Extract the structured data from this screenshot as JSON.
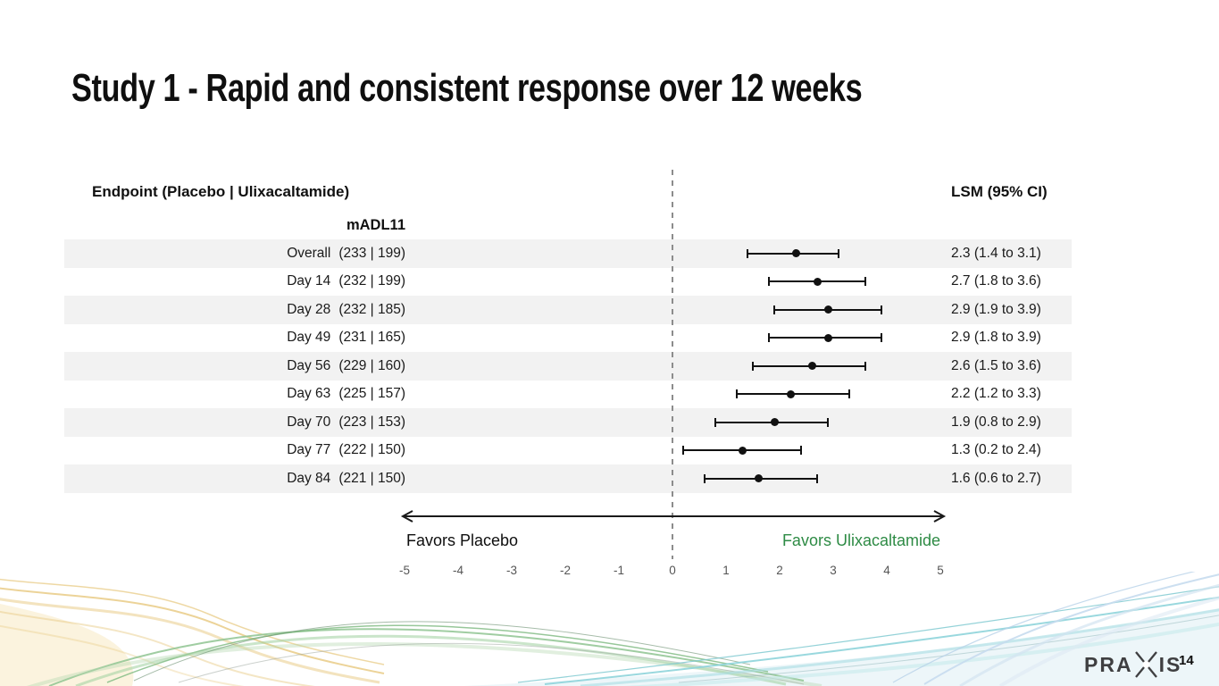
{
  "slide": {
    "page_number": "14",
    "logo_left": "PRA",
    "logo_right": "IS"
  },
  "table": {
    "endpoint_header": "Endpoint (Placebo | Ulixacaltamide)",
    "lsm_header": "LSM (95% CI)"
  },
  "colors": {
    "favors_green": "#2e8b45",
    "stripe": "#f2f2f2",
    "axis_tick_gray": "#555555",
    "reference_line_gray": "#8c8c8c",
    "marker_black": "#111111",
    "logo_gray": "#3f3f41"
  },
  "chart_data": {
    "type": "scatter",
    "variant": "forest-plot",
    "title": "Study 1 - Rapid and consistent response over 12 weeks",
    "endpoint_group": "mADL11",
    "xlim": [
      -5,
      5
    ],
    "x_ticks": [
      -5,
      -4,
      -3,
      -2,
      -1,
      0,
      1,
      2,
      3,
      4,
      5
    ],
    "zero_reference_line": 0,
    "favors_left": "Favors Placebo",
    "favors_right": "Favors Ulixacaltamide",
    "legend_position": "none",
    "grid": false,
    "rows": [
      {
        "label": "Overall",
        "counts": "(233 | 199)",
        "lsm": 2.3,
        "ci_low": 1.4,
        "ci_high": 3.1,
        "lsm_text": "2.3 (1.4 to 3.1)"
      },
      {
        "label": "Day 14",
        "counts": "(232 | 199)",
        "lsm": 2.7,
        "ci_low": 1.8,
        "ci_high": 3.6,
        "lsm_text": "2.7 (1.8 to 3.6)"
      },
      {
        "label": "Day 28",
        "counts": "(232 | 185)",
        "lsm": 2.9,
        "ci_low": 1.9,
        "ci_high": 3.9,
        "lsm_text": "2.9 (1.9 to 3.9)"
      },
      {
        "label": "Day 49",
        "counts": "(231 | 165)",
        "lsm": 2.9,
        "ci_low": 1.8,
        "ci_high": 3.9,
        "lsm_text": "2.9 (1.8 to 3.9)"
      },
      {
        "label": "Day 56",
        "counts": "(229 | 160)",
        "lsm": 2.6,
        "ci_low": 1.5,
        "ci_high": 3.6,
        "lsm_text": "2.6 (1.5 to 3.6)"
      },
      {
        "label": "Day 63",
        "counts": "(225 | 157)",
        "lsm": 2.2,
        "ci_low": 1.2,
        "ci_high": 3.3,
        "lsm_text": "2.2 (1.2 to 3.3)"
      },
      {
        "label": "Day 70",
        "counts": "(223 | 153)",
        "lsm": 1.9,
        "ci_low": 0.8,
        "ci_high": 2.9,
        "lsm_text": "1.9 (0.8 to 2.9)"
      },
      {
        "label": "Day 77",
        "counts": "(222 | 150)",
        "lsm": 1.3,
        "ci_low": 0.2,
        "ci_high": 2.4,
        "lsm_text": "1.3 (0.2 to 2.4)"
      },
      {
        "label": "Day 84",
        "counts": "(221 | 150)",
        "lsm": 1.6,
        "ci_low": 0.6,
        "ci_high": 2.7,
        "lsm_text": "1.6 (0.6 to 2.7)"
      }
    ]
  }
}
